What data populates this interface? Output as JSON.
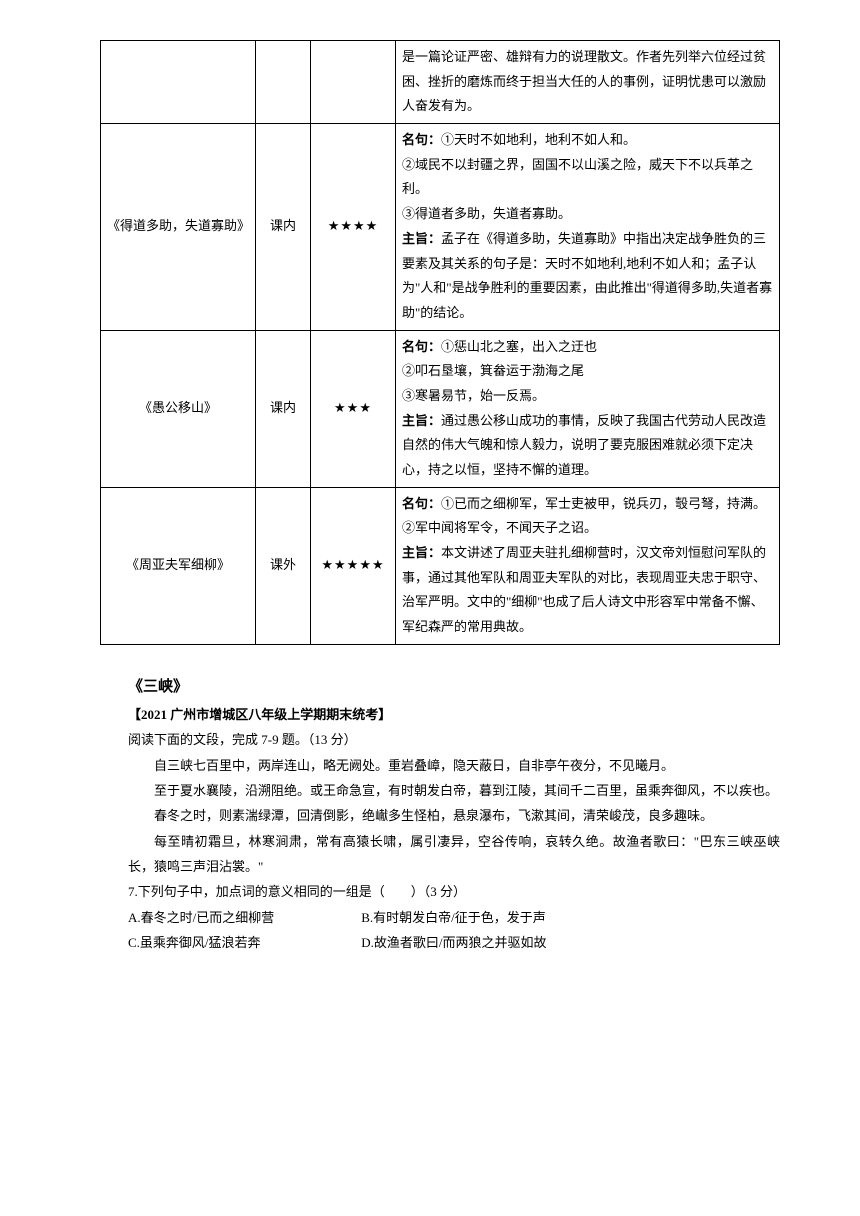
{
  "table": {
    "rows": [
      {
        "col1": "",
        "col2": "",
        "col3": "",
        "content_lines": [
          {
            "text": "是一篇论证严密、雄辩有力的说理散文。作者先列举六位经过贫困、挫折的磨炼而终于担当大任的人的事例，证明忧患可以激励人奋发有为。"
          }
        ]
      },
      {
        "col1": "《得道多助，失道寡助》",
        "col2": "课内",
        "col3": "★★★★",
        "content_lines": [
          {
            "label": "名句：",
            "text": "①天时不如地利，地利不如人和。"
          },
          {
            "text": "②域民不以封疆之界，固国不以山溪之险，威天下不以兵革之利。"
          },
          {
            "text": "③得道者多助，失道者寡助。"
          },
          {
            "label": "主旨：",
            "text": "孟子在《得道多助，失道寡助》中指出决定战争胜负的三要素及其关系的句子是：天时不如地利,地利不如人和；孟子认为\"人和\"是战争胜利的重要因素，由此推出\"得道得多助,失道者寡助\"的结论。"
          }
        ]
      },
      {
        "col1": "《愚公移山》",
        "col2": "课内",
        "col3": "★★★",
        "content_lines": [
          {
            "label": "名句：",
            "text": "①惩山北之塞，出入之迂也"
          },
          {
            "text": "②叩石垦壤，箕畚运于渤海之尾"
          },
          {
            "text": "③寒暑易节，始一反焉。"
          },
          {
            "label": "主旨：",
            "text": "通过愚公移山成功的事情，反映了我国古代劳动人民改造自然的伟大气魄和惊人毅力，说明了要克服困难就必须下定决心，持之以恒，坚持不懈的道理。"
          }
        ]
      },
      {
        "col1": "《周亚夫军细柳》",
        "col2": "课外",
        "col3": "★★★★★",
        "content_lines": [
          {
            "label": "名句：",
            "text": "①已而之细柳军，军士吏被甲，锐兵刃，彀弓弩，持满。　②军中闻将军令，不闻天子之诏。"
          },
          {
            "label": "主旨：",
            "text": "本文讲述了周亚夫驻扎细柳营时，汉文帝刘恒慰问军队的事，通过其他军队和周亚夫军队的对比，表现周亚夫忠于职守、治军严明。文中的\"细柳\"也成了后人诗文中形容军中常备不懈、军纪森严的常用典故。"
          }
        ]
      }
    ]
  },
  "section": {
    "title": "《三峡》",
    "subtitle": "【2021 广州市增城区八年级上学期期末统考】",
    "lead": "阅读下面的文段，完成 7-9 题。（13 分）",
    "paragraphs": [
      "自三峡七百里中，两岸连山，略无阙处。重岩叠嶂，隐天蔽日，自非亭午夜分，不见曦月。",
      "至于夏水襄陵，沿溯阻绝。或王命急宣，有时朝发白帝，暮到江陵，其间千二百里，虽乘奔御风，不以疾也。",
      "春冬之时，则素湍绿潭，回清倒影，绝𪩘多生怪柏，悬泉瀑布，飞漱其间，清荣峻茂，良多趣味。",
      "每至晴初霜旦，林寒涧肃，常有高猿长啸，属引凄异，空谷传响，哀转久绝。故渔者歌曰：\"巴东三峡巫峡长，猿鸣三声泪沾裳。\""
    ],
    "q7": {
      "stem": "7.下列句子中，加点词的意义相同的一组是（　　）（3 分）",
      "optA": "A.春冬之时/已而之细柳营",
      "optB": "B.有时朝发白帝/征于色，发于声",
      "optC": "C.虽乘奔御风/猛浪若奔",
      "optD": "D.故渔者歌曰/而两狼之并驱如故"
    }
  }
}
